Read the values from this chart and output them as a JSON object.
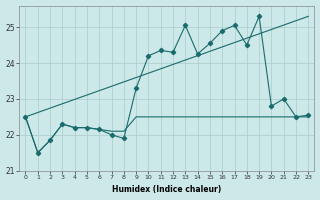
{
  "xlabel": "Humidex (Indice chaleur)",
  "bg_color": "#cce8e8",
  "grid_color": "#aacccc",
  "line_color": "#1a6b6b",
  "xlim": [
    -0.5,
    23.5
  ],
  "ylim": [
    21.0,
    25.6
  ],
  "yticks": [
    21,
    22,
    23,
    24,
    25
  ],
  "xticks": [
    0,
    1,
    2,
    3,
    4,
    5,
    6,
    7,
    8,
    9,
    10,
    11,
    12,
    13,
    14,
    15,
    16,
    17,
    18,
    19,
    20,
    21,
    22,
    23
  ],
  "series1_x": [
    0,
    1,
    2,
    3,
    4,
    5,
    6,
    7,
    8,
    9,
    10,
    11,
    12,
    13,
    14,
    15,
    16,
    17,
    18,
    19,
    20,
    21,
    22,
    23
  ],
  "series1_y": [
    22.5,
    21.5,
    21.85,
    22.3,
    22.2,
    22.2,
    22.15,
    22.0,
    21.9,
    23.3,
    24.2,
    24.35,
    24.3,
    25.05,
    24.25,
    24.55,
    24.9,
    25.05,
    24.5,
    25.3,
    22.8,
    23.0,
    22.5,
    22.55
  ],
  "series2_x": [
    0,
    23
  ],
  "series2_y": [
    22.5,
    25.3
  ],
  "series3_x": [
    0,
    1,
    2,
    3,
    4,
    5,
    6,
    7,
    8,
    9,
    10,
    11,
    12,
    13,
    14,
    15,
    16,
    17,
    18,
    19,
    20,
    21,
    22,
    23
  ],
  "series3_y": [
    22.5,
    21.5,
    21.85,
    22.3,
    22.2,
    22.2,
    22.15,
    22.1,
    22.1,
    22.5,
    22.5,
    22.5,
    22.5,
    22.5,
    22.5,
    22.5,
    22.5,
    22.5,
    22.5,
    22.5,
    22.5,
    22.5,
    22.5,
    22.5
  ]
}
